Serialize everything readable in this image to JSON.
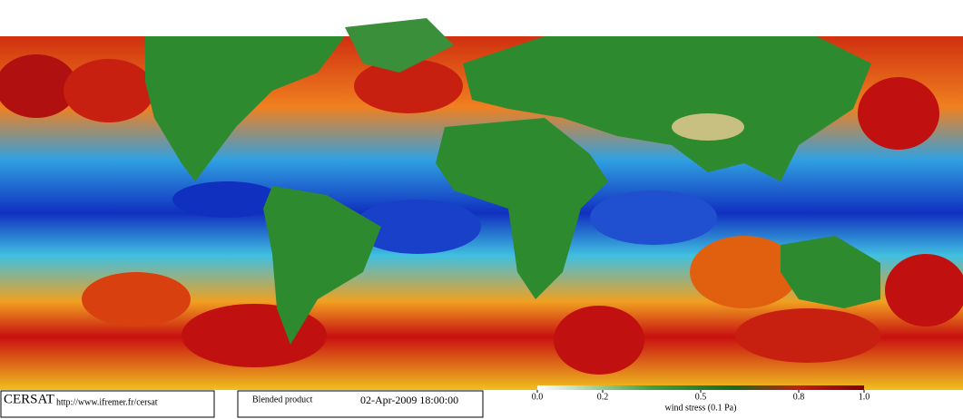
{
  "header": {
    "org": "CERSAT",
    "url": "http://www.ifremer.fr/cersat",
    "product": "Blended product",
    "date": "02-Apr-2009 18:00:00"
  },
  "colorbar": {
    "label": "wind stress (0.1 Pa)",
    "range": [
      0,
      1
    ],
    "ticks": [
      {
        "value": 0,
        "label": "0.0"
      },
      {
        "value": 0.2,
        "label": "0.2"
      },
      {
        "value": 0.5,
        "label": "0.5"
      },
      {
        "value": 0.8,
        "label": "0.8"
      },
      {
        "value": 1,
        "label": "1.0"
      }
    ]
  }
}
